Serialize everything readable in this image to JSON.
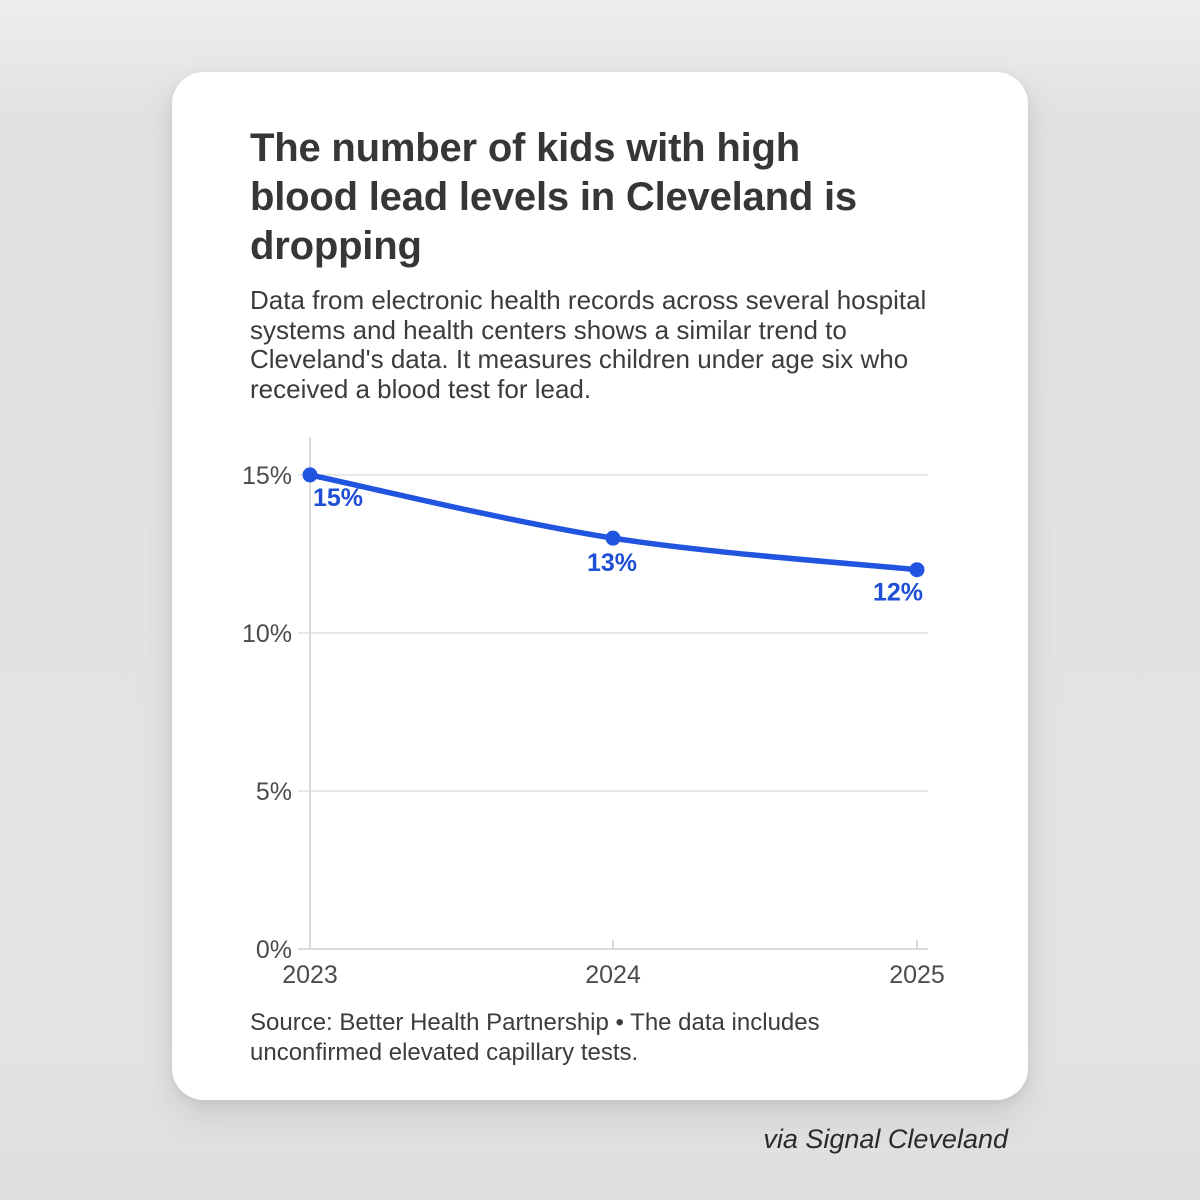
{
  "page": {
    "background_color": "#e3e3e3",
    "card_color": "#ffffff"
  },
  "card": {
    "title": "The number of kids with high blood lead levels in Cleveland is dropping",
    "subtitle": "Data from electronic health records across several hospital systems and health centers shows a similar trend to Cleveland's data. It measures children under age six who received a blood test for lead.",
    "source": "Source: Better Health Partnership • The data includes unconfirmed elevated capillary tests."
  },
  "attribution": "via Signal Cleveland",
  "chart_data": {
    "type": "line",
    "title": "The number of kids with high blood lead levels in Cleveland is dropping",
    "x": [
      "2023",
      "2024",
      "2025"
    ],
    "values": [
      15,
      13,
      12
    ],
    "point_labels": [
      "15%",
      "13%",
      "12%"
    ],
    "y_ticks": [
      0,
      5,
      10,
      15
    ],
    "y_tick_labels": [
      "0%",
      "5%",
      "10%",
      "15%"
    ],
    "ylim": [
      0,
      16.2
    ],
    "grid": true,
    "legend": "none",
    "line_color": "#2155df",
    "point_label_color": "#1e4fd6",
    "axis_label_color": "#4c4c4c",
    "gridline_color": "#e7e7e7",
    "axis_line_color": "#d9d9d9"
  }
}
